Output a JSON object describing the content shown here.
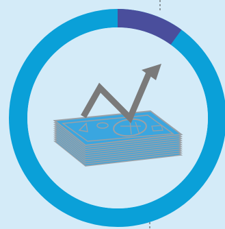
{
  "colors": {
    "background": "#d4ebf8",
    "ring": "#0aa0d8",
    "ring_highlight": "#4a4e9c",
    "ring_inner_face": "#d4ebf8",
    "arrow": "#7a7a7a",
    "bill_fill": "#3aa6e0",
    "bill_stroke": "#9aa0a6",
    "dashed_line": "#444444"
  },
  "progress_ring": {
    "highlighted_fraction": 0.1
  },
  "illustration": {
    "icon": "money-stack-growth-arrow-icon"
  }
}
